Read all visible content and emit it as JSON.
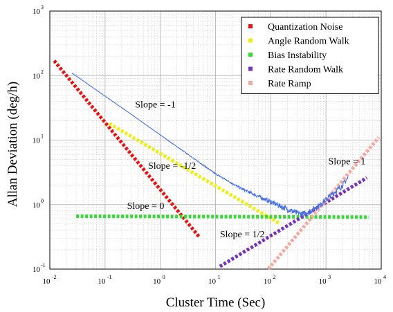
{
  "chart_data": {
    "type": "line",
    "xlabel": "Cluster Time (Sec)",
    "ylabel": "Allan Deviation (deg/h)",
    "xscale": "log",
    "yscale": "log",
    "xlim": [
      0.01,
      10000
    ],
    "ylim": [
      0.1,
      1000
    ],
    "grid": true,
    "legend_position": "top-right",
    "x_ticks": [
      {
        "base": "10",
        "exp": "-2"
      },
      {
        "base": "10",
        "exp": "-1"
      },
      {
        "base": "10",
        "exp": "0"
      },
      {
        "base": "10",
        "exp": "1"
      },
      {
        "base": "10",
        "exp": "2"
      },
      {
        "base": "10",
        "exp": "3"
      },
      {
        "base": "10",
        "exp": "4"
      }
    ],
    "y_ticks": [
      {
        "base": "10",
        "exp": "-1"
      },
      {
        "base": "10",
        "exp": "0"
      },
      {
        "base": "10",
        "exp": "1"
      },
      {
        "base": "10",
        "exp": "2"
      },
      {
        "base": "10",
        "exp": "3"
      }
    ],
    "measured_curve": {
      "color": "#4a72e8",
      "points": [
        [
          0.025,
          110
        ],
        [
          0.1,
          48
        ],
        [
          0.3,
          25
        ],
        [
          1,
          12
        ],
        [
          3,
          6.2
        ],
        [
          10,
          3.0
        ],
        [
          30,
          1.75
        ],
        [
          100,
          1.1
        ],
        [
          200,
          0.85
        ],
        [
          300,
          0.74
        ],
        [
          400,
          0.72
        ],
        [
          500,
          0.78
        ],
        [
          800,
          1.0
        ],
        [
          1000,
          1.2
        ],
        [
          2000,
          2.0
        ],
        [
          2500,
          2.6
        ]
      ]
    },
    "series": [
      {
        "name": "Quantization Noise",
        "color": "#ee1111",
        "points": [
          [
            0.012,
            170
          ],
          [
            5,
            0.32
          ]
        ]
      },
      {
        "name": "Angle Random Walk",
        "color": "#eeee11",
        "points": [
          [
            0.12,
            18
          ],
          [
            150,
            0.5
          ]
        ]
      },
      {
        "name": "Bias Instability",
        "color": "#33dd33",
        "points": [
          [
            0.03,
            0.66
          ],
          [
            6000,
            0.64
          ]
        ]
      },
      {
        "name": "Rate Random Walk",
        "color": "#7733bb",
        "points": [
          [
            12,
            0.11
          ],
          [
            5500,
            2.6
          ]
        ]
      },
      {
        "name": "Rate Ramp",
        "color": "#f5a8a0",
        "points": [
          [
            90,
            0.1
          ],
          [
            9000,
            11
          ]
        ]
      }
    ],
    "annotations": [
      {
        "text": "Slope = -1",
        "x": 0.35,
        "y": 32
      },
      {
        "text": "Slope = -1/2",
        "x": 0.6,
        "y": 3.6
      },
      {
        "text": "Slope = 0",
        "x": 0.25,
        "y": 0.86
      },
      {
        "text": "Slope = 1",
        "x": 1100,
        "y": 4.2
      },
      {
        "text": "Slope = 1/2",
        "x": 12,
        "y": 0.31
      }
    ]
  }
}
